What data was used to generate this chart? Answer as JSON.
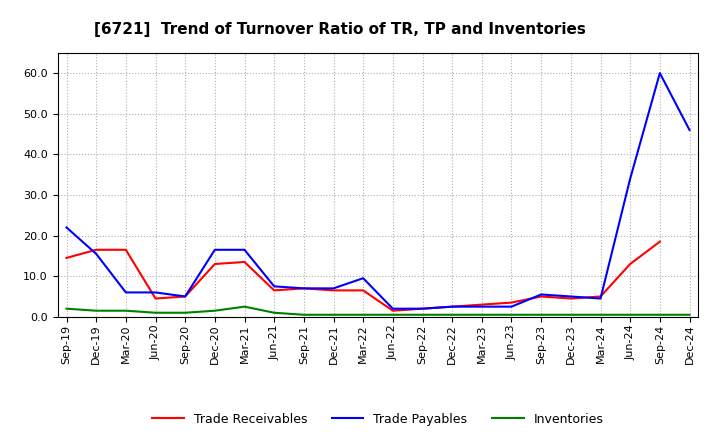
{
  "title": "[6721]  Trend of Turnover Ratio of TR, TP and Inventories",
  "x_labels": [
    "Sep-19",
    "Dec-19",
    "Mar-20",
    "Jun-20",
    "Sep-20",
    "Dec-20",
    "Mar-21",
    "Jun-21",
    "Sep-21",
    "Dec-21",
    "Mar-22",
    "Jun-22",
    "Sep-22",
    "Dec-22",
    "Mar-23",
    "Jun-23",
    "Sep-23",
    "Dec-23",
    "Mar-24",
    "Jun-24",
    "Sep-24",
    "Dec-24"
  ],
  "trade_receivables_x": [
    0,
    1,
    2,
    3,
    4,
    5,
    6,
    7,
    8,
    9,
    10,
    11,
    12,
    13,
    14,
    15,
    16,
    17,
    18,
    19,
    20
  ],
  "trade_receivables_y": [
    14.5,
    16.5,
    16.5,
    4.5,
    5.0,
    13.0,
    13.5,
    6.5,
    7.0,
    6.5,
    6.5,
    1.5,
    2.0,
    2.5,
    3.0,
    3.5,
    5.0,
    4.5,
    5.0,
    13.0,
    18.5
  ],
  "trade_payables_x": [
    0,
    1,
    2,
    3,
    4,
    5,
    6,
    7,
    8,
    9,
    10,
    11,
    12,
    13,
    14,
    15,
    16,
    17,
    18,
    19,
    20,
    21
  ],
  "trade_payables_y": [
    22.0,
    15.5,
    6.0,
    6.0,
    5.0,
    16.5,
    16.5,
    7.5,
    7.0,
    7.0,
    9.5,
    2.0,
    2.0,
    2.5,
    2.5,
    2.5,
    5.5,
    5.0,
    4.5,
    34.0,
    60.0,
    46.0
  ],
  "inventories_x": [
    0,
    1,
    2,
    3,
    4,
    5,
    6,
    7,
    8,
    9,
    10,
    11,
    12,
    13,
    14,
    15,
    16,
    17,
    18,
    19,
    20,
    21
  ],
  "inventories_y": [
    2.0,
    1.5,
    1.5,
    1.0,
    1.0,
    1.5,
    2.5,
    1.0,
    0.5,
    0.5,
    0.5,
    0.5,
    0.5,
    0.5,
    0.5,
    0.5,
    0.5,
    0.5,
    0.5,
    0.5,
    0.5,
    0.5
  ],
  "ylim": [
    0.0,
    65.0
  ],
  "yticks": [
    0.0,
    10.0,
    20.0,
    30.0,
    40.0,
    50.0,
    60.0
  ],
  "color_tr": "#ff0000",
  "color_tp": "#0000ff",
  "color_inv": "#008000",
  "bg_color": "#ffffff",
  "grid_color": "#b0b0b0",
  "title_fontsize": 11,
  "legend_fontsize": 9,
  "tick_fontsize": 8
}
